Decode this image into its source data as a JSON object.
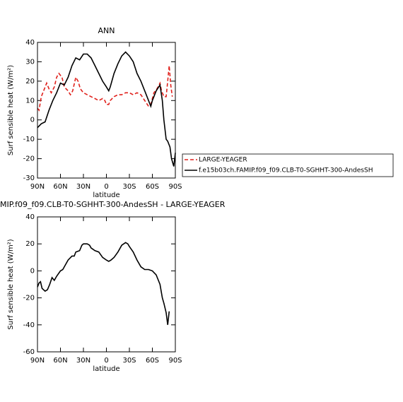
{
  "chart_data": [
    {
      "type": "line",
      "title": "ANN",
      "xlabel": "latitude",
      "ylabel": "Surf sensible heat (W/m²)",
      "xlim": [
        90,
        -90
      ],
      "ylim": [
        -30,
        40
      ],
      "xticks": [
        {
          "value": 90,
          "label": "90N"
        },
        {
          "value": 60,
          "label": "60N"
        },
        {
          "value": 30,
          "label": "30N"
        },
        0,
        {
          "value": -30,
          "label": "30S"
        },
        {
          "value": -60,
          "label": "60S"
        },
        {
          "value": -90,
          "label": "90S"
        }
      ],
      "yticks": [
        -30,
        -20,
        -10,
        0,
        10,
        20,
        30,
        40
      ],
      "legend": "right",
      "series": [
        {
          "name": "LARGE-YEAGER",
          "color": "#e0201b",
          "linestyle": "dashed",
          "x": [
            90,
            88,
            85,
            82,
            78,
            75,
            72,
            68,
            65,
            62,
            58,
            55,
            50,
            47,
            44,
            40,
            37,
            34,
            30,
            25,
            20,
            15,
            10,
            5,
            2,
            0,
            -3,
            -5,
            -10,
            -15,
            -20,
            -25,
            -30,
            -35,
            -40,
            -45,
            -50,
            -55,
            -58,
            -62,
            -66,
            -70,
            -72,
            -75,
            -78,
            -80,
            -82,
            -84,
            -86
          ],
          "values": [
            6,
            5,
            12,
            15,
            19,
            16,
            14,
            17,
            22,
            24,
            22,
            17,
            15,
            13,
            15,
            22,
            20,
            16,
            14,
            13,
            12,
            11,
            10,
            11,
            10,
            8,
            8,
            10,
            12,
            13,
            13,
            14,
            14,
            13,
            14,
            13,
            10,
            7,
            8,
            14,
            16,
            19,
            15,
            12,
            12,
            20,
            28,
            18,
            12
          ]
        },
        {
          "name": "f.e15b03ch.FAMIP.f09_f09.CLB-T0-SGHHT-300-AndesSH",
          "color": "#000000",
          "linestyle": "solid",
          "x": [
            90,
            85,
            80,
            75,
            70,
            65,
            60,
            55,
            50,
            45,
            40,
            35,
            30,
            25,
            20,
            15,
            10,
            5,
            0,
            -3,
            -5,
            -10,
            -15,
            -20,
            -25,
            -30,
            -35,
            -40,
            -45,
            -50,
            -55,
            -58,
            -60,
            -65,
            -70,
            -73,
            -75,
            -78,
            -80,
            -83,
            -85,
            -88,
            -90
          ],
          "values": [
            -4,
            -2,
            -1,
            5,
            10,
            14,
            19,
            18,
            22,
            28,
            32,
            31,
            34,
            34,
            32,
            28,
            24,
            20,
            17,
            15,
            17,
            24,
            29,
            33,
            35,
            33,
            30,
            24,
            20,
            15,
            10,
            7,
            10,
            15,
            18,
            10,
            0,
            -10,
            -11,
            -14,
            -20,
            -24,
            -17
          ]
        }
      ]
    },
    {
      "type": "line",
      "title": "MIP.f09_f09.CLB-T0-SGHHT-300-AndesSH - LARGE-YEAGER",
      "xlabel": "latitude",
      "ylabel": "Surf sensible heat (W/m²)",
      "xlim": [
        90,
        -90
      ],
      "ylim": [
        -60,
        40
      ],
      "xticks": [
        {
          "value": 90,
          "label": "90N"
        },
        {
          "value": 60,
          "label": "60N"
        },
        {
          "value": 30,
          "label": "30N"
        },
        0,
        {
          "value": -30,
          "label": "30S"
        },
        {
          "value": -60,
          "label": "60S"
        },
        {
          "value": -90,
          "label": "90S"
        }
      ],
      "yticks": [
        -60,
        -40,
        -20,
        0,
        20,
        40
      ],
      "series": [
        {
          "color": "#000000",
          "linestyle": "solid",
          "x": [
            90,
            88,
            86,
            84,
            80,
            77,
            74,
            71,
            68,
            65,
            60,
            57,
            55,
            50,
            45,
            42,
            40,
            35,
            32,
            30,
            25,
            22,
            20,
            15,
            10,
            5,
            0,
            -3,
            -6,
            -10,
            -15,
            -20,
            -25,
            -28,
            -30,
            -35,
            -40,
            -45,
            -50,
            -55,
            -60,
            -65,
            -70,
            -73,
            -75,
            -78,
            -80,
            -82
          ],
          "values": [
            -12,
            -9,
            -8,
            -13,
            -15,
            -14,
            -10,
            -5,
            -7,
            -4,
            0,
            1,
            3,
            8,
            11,
            11,
            14,
            15,
            19,
            20,
            20,
            19,
            17,
            15,
            14,
            10,
            8,
            7,
            8,
            10,
            14,
            19,
            21,
            20,
            18,
            14,
            8,
            3,
            1,
            1,
            0,
            -3,
            -10,
            -20,
            -24,
            -31,
            -40,
            -30
          ]
        }
      ]
    }
  ]
}
